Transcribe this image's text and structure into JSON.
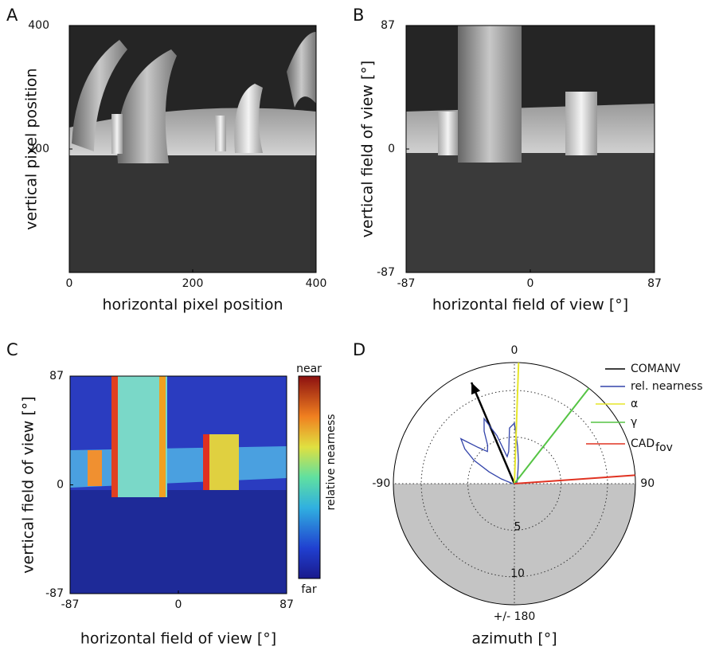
{
  "chart_data": [
    {
      "type": "image",
      "panel": "A",
      "xlabel": "horizontal pixel position",
      "ylabel": "vertical pixel position",
      "xlim": [
        0,
        400
      ],
      "ylim": [
        0,
        400
      ],
      "xticks": [
        0,
        200,
        400
      ],
      "yticks": [
        200,
        400
      ]
    },
    {
      "type": "image",
      "panel": "B",
      "xlabel": "horizontal field of view [°]",
      "ylabel": "vertical field of view [°]",
      "xlim": [
        -87,
        87
      ],
      "ylim": [
        -87,
        87
      ],
      "xticks": [
        -87,
        0,
        87
      ],
      "yticks": [
        -87,
        0,
        87
      ]
    },
    {
      "type": "image",
      "panel": "C",
      "xlabel": "horizontal field of view [°]",
      "ylabel": "vertical field of view [°]",
      "xlim": [
        -87,
        87
      ],
      "ylim": [
        -87,
        87
      ],
      "xticks": [
        -87,
        0,
        87
      ],
      "yticks": [
        -87,
        0,
        87
      ],
      "colorbar_label": "relative nearness",
      "colorbar_top": "near",
      "colorbar_bottom": "far",
      "colormap": "jet"
    },
    {
      "type": "polar",
      "panel": "D",
      "xlabel": "azimuth [°]",
      "aticks": [
        0,
        -90,
        90,
        {
          "value": 180,
          "label": "+/- 180"
        }
      ],
      "rlim": [
        0,
        13
      ],
      "rticks": [
        5,
        10
      ],
      "series": [
        {
          "name": "COMANV",
          "color": "#000000",
          "kind": "arrow",
          "angle": -23,
          "r": 11.8
        },
        {
          "name": "rel. nearness",
          "color": "#3344aa",
          "kind": "curve",
          "angles": [
            -90,
            -85,
            -80,
            -75,
            -70,
            -65,
            -60,
            -55,
            -50,
            -45,
            -40,
            -35,
            -30,
            -25,
            -20,
            -15,
            -10,
            -5,
            0,
            5,
            10,
            15,
            20,
            25,
            30,
            35,
            40,
            45,
            50,
            55,
            60,
            65,
            70,
            75,
            80,
            85,
            90
          ],
          "values": [
            0.2,
            0.3,
            0.3,
            0.5,
            1.5,
            3,
            5,
            6.5,
            7.5,
            5.5,
            4.5,
            5,
            6.5,
            7.7,
            5.5,
            3,
            3.5,
            6,
            6.5,
            4,
            2.5,
            1.5,
            1,
            0.8,
            0.6,
            0.5,
            0.5,
            0.4,
            0.4,
            0.3,
            0.3,
            0.3,
            0.3,
            0.2,
            0.2,
            0.2,
            0.2
          ]
        },
        {
          "name": "α",
          "color": "#e6e62a",
          "kind": "line",
          "angle": 2,
          "r": 13
        },
        {
          "name": "γ",
          "color": "#55c444",
          "kind": "line",
          "angle": 38,
          "r": 13
        },
        {
          "name": "CAD",
          "subscript": "fov",
          "color": "#e03322",
          "kind": "line",
          "angle": 86,
          "r": 13
        }
      ]
    }
  ]
}
